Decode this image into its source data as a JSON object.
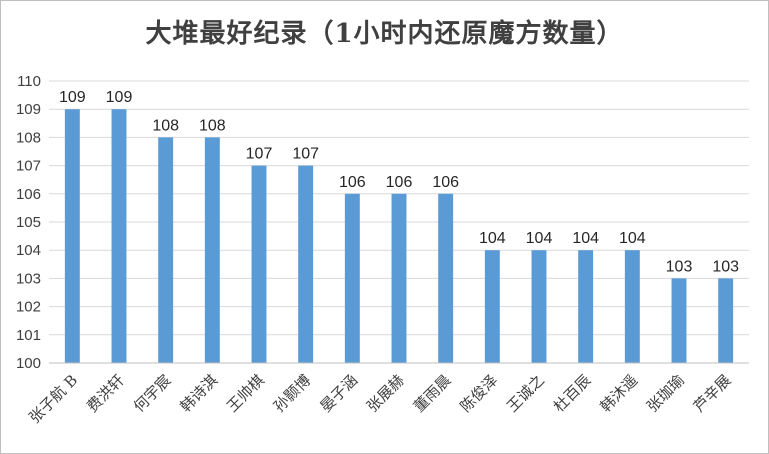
{
  "chart_data": {
    "type": "bar",
    "title": "大堆最好纪录（1小时内还原魔方数量）",
    "categories": [
      "张子航 B",
      "费洪轩",
      "何宇宸",
      "韩诗淇",
      "王帅棋",
      "孙颢博",
      "晏子涵",
      "张展赫",
      "董雨晨",
      "陈俊泽",
      "王诚之",
      "杜百辰",
      "韩沐遥",
      "张珈瑜",
      "芦辛展"
    ],
    "values": [
      109,
      109,
      108,
      108,
      107,
      107,
      106,
      106,
      106,
      104,
      104,
      104,
      104,
      103,
      103
    ],
    "ylim": [
      100,
      110
    ],
    "yticks": [
      "100",
      "101",
      "102",
      "103",
      "104",
      "105",
      "106",
      "107",
      "108",
      "109",
      "110"
    ],
    "xlabel": "",
    "ylabel": "",
    "grid": true,
    "bar_color": "#5b9bd5",
    "grid_color": "#d9d9d9"
  }
}
